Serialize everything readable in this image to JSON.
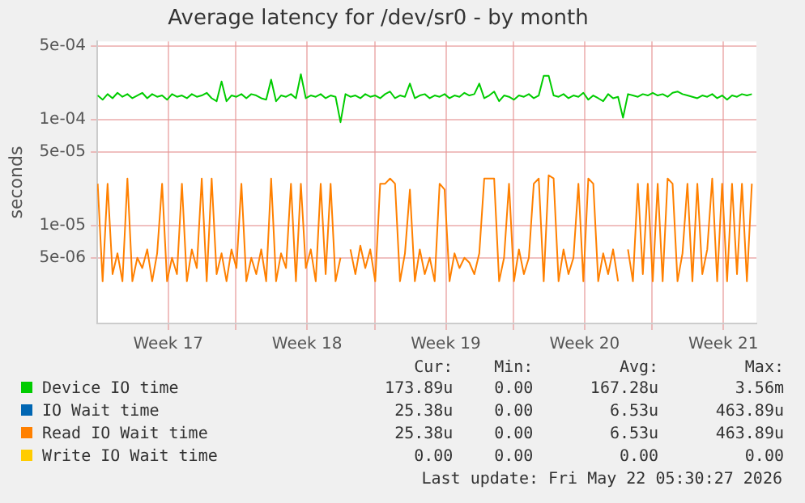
{
  "chart_data": {
    "type": "line",
    "title": "Average latency for /dev/sr0 - by month",
    "ylabel": "seconds",
    "x": [
      "2026-04-19T00:00",
      "2026-04-19T06:00",
      "2026-04-19T12:00",
      "2026-04-19T18:00",
      "2026-04-20T00:00",
      "2026-04-20T06:00",
      "2026-04-20T12:00",
      "2026-04-20T18:00",
      "2026-04-21T00:00",
      "2026-04-21T06:00",
      "2026-04-21T12:00",
      "2026-04-21T18:00",
      "2026-04-22T00:00",
      "2026-04-22T06:00",
      "2026-04-22T12:00",
      "2026-04-22T18:00",
      "2026-04-23T00:00",
      "2026-04-23T06:00",
      "2026-04-23T12:00",
      "2026-04-23T18:00",
      "2026-04-24T00:00",
      "2026-04-24T06:00",
      "2026-04-24T12:00",
      "2026-04-24T18:00",
      "2026-04-25T00:00",
      "2026-04-25T06:00",
      "2026-04-25T12:00",
      "2026-04-25T18:00",
      "2026-04-26T00:00",
      "2026-04-26T06:00",
      "2026-04-26T12:00",
      "2026-04-26T18:00",
      "2026-04-27T00:00",
      "2026-04-27T06:00",
      "2026-04-27T12:00",
      "2026-04-27T18:00",
      "2026-04-28T00:00",
      "2026-04-28T06:00",
      "2026-04-28T12:00",
      "2026-04-28T18:00",
      "2026-04-29T00:00",
      "2026-04-29T06:00",
      "2026-04-29T12:00",
      "2026-04-29T18:00",
      "2026-04-30T00:00",
      "2026-04-30T06:00",
      "2026-04-30T12:00",
      "2026-04-30T18:00",
      "2026-05-01T00:00",
      "2026-05-01T06:00",
      "2026-05-01T12:00",
      "2026-05-01T18:00",
      "2026-05-02T00:00",
      "2026-05-02T06:00",
      "2026-05-02T12:00",
      "2026-05-02T18:00",
      "2026-05-03T00:00",
      "2026-05-03T06:00",
      "2026-05-03T12:00",
      "2026-05-03T18:00",
      "2026-05-04T00:00",
      "2026-05-04T06:00",
      "2026-05-04T12:00",
      "2026-05-04T18:00",
      "2026-05-05T00:00",
      "2026-05-05T06:00",
      "2026-05-05T12:00",
      "2026-05-05T18:00",
      "2026-05-06T00:00",
      "2026-05-06T06:00",
      "2026-05-06T12:00",
      "2026-05-06T18:00",
      "2026-05-07T00:00",
      "2026-05-07T06:00",
      "2026-05-07T12:00",
      "2026-05-07T18:00",
      "2026-05-08T00:00",
      "2026-05-08T06:00",
      "2026-05-08T12:00",
      "2026-05-08T18:00",
      "2026-05-09T00:00",
      "2026-05-09T06:00",
      "2026-05-09T12:00",
      "2026-05-09T18:00",
      "2026-05-10T00:00",
      "2026-05-10T06:00",
      "2026-05-10T12:00",
      "2026-05-10T18:00",
      "2026-05-11T00:00",
      "2026-05-11T06:00",
      "2026-05-11T12:00",
      "2026-05-11T18:00",
      "2026-05-12T00:00",
      "2026-05-12T06:00",
      "2026-05-12T12:00",
      "2026-05-12T18:00",
      "2026-05-13T00:00",
      "2026-05-13T06:00",
      "2026-05-13T12:00",
      "2026-05-13T18:00",
      "2026-05-14T00:00",
      "2026-05-14T06:00",
      "2026-05-14T12:00",
      "2026-05-14T18:00",
      "2026-05-15T00:00",
      "2026-05-15T06:00",
      "2026-05-15T12:00",
      "2026-05-15T18:00",
      "2026-05-16T00:00",
      "2026-05-16T06:00",
      "2026-05-16T12:00",
      "2026-05-16T18:00",
      "2026-05-17T00:00",
      "2026-05-17T06:00",
      "2026-05-17T12:00",
      "2026-05-17T18:00",
      "2026-05-18T00:00",
      "2026-05-18T06:00",
      "2026-05-18T12:00",
      "2026-05-18T18:00",
      "2026-05-19T00:00",
      "2026-05-19T06:00",
      "2026-05-19T12:00",
      "2026-05-19T18:00",
      "2026-05-20T00:00",
      "2026-05-20T06:00",
      "2026-05-20T12:00",
      "2026-05-20T18:00",
      "2026-05-21T00:00",
      "2026-05-21T06:00",
      "2026-05-21T12:00",
      "2026-05-21T18:00",
      "2026-05-22T00:00"
    ],
    "series": [
      {
        "name": "Device IO time",
        "color": "#00cc00",
        "values": [
          0.00017,
          0.000155,
          0.000175,
          0.00016,
          0.00018,
          0.000165,
          0.000175,
          0.00016,
          0.00017,
          0.00018,
          0.00016,
          0.000175,
          0.000165,
          0.00017,
          0.000155,
          0.000175,
          0.000165,
          0.00017,
          0.00016,
          0.000175,
          0.000165,
          0.00017,
          0.00018,
          0.00016,
          0.00015,
          0.00023,
          0.00015,
          0.00017,
          0.000165,
          0.000175,
          0.00016,
          0.000175,
          0.00017,
          0.00016,
          0.000155,
          0.00024,
          0.00015,
          0.00017,
          0.000165,
          0.000175,
          0.00016,
          0.00027,
          0.00016,
          0.00017,
          0.000165,
          0.000175,
          0.00016,
          0.00017,
          0.000165,
          9.5e-05,
          0.000175,
          0.000165,
          0.00017,
          0.00016,
          0.000175,
          0.000165,
          0.00017,
          0.00016,
          0.000175,
          0.000185,
          0.00016,
          0.00017,
          0.000165,
          0.00022,
          0.00016,
          0.00017,
          0.000175,
          0.00016,
          0.00017,
          0.000165,
          0.000175,
          0.00016,
          0.00017,
          0.000165,
          0.00018,
          0.00017,
          0.000175,
          0.00022,
          0.00016,
          0.00017,
          0.000185,
          0.00015,
          0.00017,
          0.000165,
          0.000155,
          0.00017,
          0.000165,
          0.000175,
          0.00016,
          0.00017,
          0.00026,
          0.00026,
          0.00017,
          0.000165,
          0.000175,
          0.00016,
          0.00017,
          0.000165,
          0.00018,
          0.000155,
          0.00017,
          0.00016,
          0.00015,
          0.000175,
          0.00016,
          0.000165,
          0.000105,
          0.000175,
          0.00017,
          0.000165,
          0.000175,
          0.00017,
          0.00018,
          0.00017,
          0.000175,
          0.000165,
          0.00018,
          0.000185,
          0.000175,
          0.00017,
          0.000165,
          0.00016,
          0.00017,
          0.000165,
          0.000175,
          0.00016,
          0.00017,
          0.000155,
          0.00017,
          0.000165,
          0.000175,
          0.00017,
          0.000175
        ]
      },
      {
        "name": "IO Wait time",
        "color": "#0066b3",
        "values": [
          null,
          null,
          null,
          null,
          null,
          null,
          null,
          null,
          null,
          null,
          null,
          null,
          null,
          null,
          null,
          null,
          null,
          null,
          null,
          null,
          null,
          null,
          null,
          null,
          null,
          null,
          null,
          null,
          null,
          null,
          null,
          null,
          null,
          null,
          null,
          null,
          null,
          null,
          null,
          null,
          null,
          null,
          null,
          null,
          null,
          null,
          null,
          null,
          null,
          null,
          null,
          null,
          null,
          null,
          null,
          null,
          null,
          null,
          null,
          null,
          null,
          null,
          null,
          null,
          null,
          null,
          null,
          null,
          null,
          null,
          null,
          null,
          null,
          null,
          null,
          null,
          null,
          null,
          null,
          null,
          null,
          null,
          null,
          null,
          null,
          null,
          null,
          null,
          null,
          null,
          null,
          null,
          null,
          null,
          null,
          null,
          null,
          null,
          null,
          null,
          null,
          null,
          null,
          null,
          null,
          null,
          null,
          null,
          null,
          null,
          null,
          null,
          null,
          null,
          null,
          null,
          null,
          null,
          null,
          null,
          null,
          null,
          null,
          null,
          null,
          null,
          null,
          null,
          null,
          null,
          null,
          null,
          null
        ]
      },
      {
        "name": "Read IO Wait time",
        "color": "#ff8000",
        "values": [
          2.5e-05,
          3e-06,
          2.5e-05,
          3.5e-06,
          5.5e-06,
          3e-06,
          2.8e-05,
          3e-06,
          5e-06,
          4e-06,
          6e-06,
          3e-06,
          5.5e-06,
          2.5e-05,
          3e-06,
          5e-06,
          3.5e-06,
          2.5e-05,
          3e-06,
          6e-06,
          4e-06,
          2.8e-05,
          3e-06,
          2.8e-05,
          3.5e-06,
          5.5e-06,
          3e-06,
          6e-06,
          4e-06,
          2.5e-05,
          3e-06,
          5e-06,
          3.5e-06,
          6e-06,
          3e-06,
          2.8e-05,
          3e-06,
          5.5e-06,
          4e-06,
          2.5e-05,
          3e-06,
          2.5e-05,
          4e-06,
          6e-06,
          3e-06,
          2.5e-05,
          3.5e-06,
          2.5e-05,
          3e-06,
          5e-06,
          null,
          6e-06,
          3.5e-06,
          6.5e-06,
          4e-06,
          6e-06,
          3e-06,
          2.5e-05,
          2.5e-05,
          2.8e-05,
          2.5e-05,
          3e-06,
          5.5e-06,
          2.2e-05,
          3e-06,
          6e-06,
          3.5e-06,
          5e-06,
          3e-06,
          2.5e-05,
          2.2e-05,
          3e-06,
          5.5e-06,
          4e-06,
          5e-06,
          4.5e-06,
          3.5e-06,
          5.5e-06,
          2.8e-05,
          2.8e-05,
          2.8e-05,
          3e-06,
          5e-06,
          2.5e-05,
          3e-06,
          6e-06,
          3.5e-06,
          5e-06,
          2.5e-05,
          2.8e-05,
          3e-06,
          3e-05,
          2.8e-05,
          3e-06,
          6e-06,
          3.5e-06,
          5e-06,
          2.5e-05,
          3e-06,
          2.8e-05,
          2.5e-05,
          3e-06,
          5.5e-06,
          3.5e-06,
          6e-06,
          3e-06,
          null,
          6e-06,
          3e-06,
          2.5e-05,
          3.5e-06,
          2.5e-05,
          3e-06,
          2.5e-05,
          3e-06,
          2.8e-05,
          2.5e-05,
          3e-06,
          5.5e-06,
          2.5e-05,
          3e-06,
          2.5e-05,
          3.5e-06,
          6e-06,
          2.8e-05,
          3e-06,
          2.5e-05,
          3e-06,
          2.5e-05,
          3.5e-06,
          2.5e-05,
          3e-06,
          2.5e-05
        ]
      },
      {
        "name": "Write IO Wait time",
        "color": "#ffcc00",
        "values": [
          null,
          null,
          null,
          null,
          null,
          null,
          null,
          null,
          null,
          null,
          null,
          null,
          null,
          null,
          null,
          null,
          null,
          null,
          null,
          null,
          null,
          null,
          null,
          null,
          null,
          null,
          null,
          null,
          null,
          null,
          null,
          null,
          null,
          null,
          null,
          null,
          null,
          null,
          null,
          null,
          null,
          null,
          null,
          null,
          null,
          null,
          null,
          null,
          null,
          null,
          null,
          null,
          null,
          null,
          null,
          null,
          null,
          null,
          null,
          null,
          null,
          null,
          null,
          null,
          null,
          null,
          null,
          null,
          null,
          null,
          null,
          null,
          null,
          null,
          null,
          null,
          null,
          null,
          null,
          null,
          null,
          null,
          null,
          null,
          null,
          null,
          null,
          null,
          null,
          null,
          null,
          null,
          null,
          null,
          null,
          null,
          null,
          null,
          null,
          null,
          null,
          null,
          null,
          null,
          null,
          null,
          null,
          null,
          null,
          null,
          null,
          null,
          null,
          null,
          null,
          null,
          null,
          null,
          null,
          null,
          null,
          null,
          null,
          null,
          null,
          null,
          null,
          null,
          null,
          null,
          null,
          null,
          null
        ]
      }
    ],
    "log": "y",
    "ylim": [
      1.2e-06,
      0.00055
    ],
    "yticks": [
      {
        "value": 5e-06,
        "label": "5e-06"
      },
      {
        "value": 1e-05,
        "label": "1e-05"
      },
      {
        "value": 5e-05,
        "label": "5e-05"
      },
      {
        "value": 0.0001,
        "label": "1e-04"
      },
      {
        "value": 0.0005,
        "label": "5e-04"
      }
    ],
    "xlim": [
      "2026-04-18T23:30",
      "2026-05-22T05:30"
    ],
    "xticks": [
      {
        "value": "2026-04-22T13:30",
        "label": "Week 17"
      },
      {
        "value": "2026-04-25T23:30",
        "label": null
      },
      {
        "value": "2026-04-29T13:30",
        "label": "Week 18"
      },
      {
        "value": "2026-05-02T23:30",
        "label": null
      },
      {
        "value": "2026-05-06T13:30",
        "label": "Week 19"
      },
      {
        "value": "2026-05-09T23:30",
        "label": null
      },
      {
        "value": "2026-05-13T13:30",
        "label": "Week 20"
      },
      {
        "value": "2026-05-16T23:30",
        "label": null
      },
      {
        "value": "2026-05-20T13:30",
        "label": "Week 21"
      }
    ],
    "grid": true,
    "legend": "bottom",
    "marker": "none",
    "line_style": "solid",
    "annotations": [
      "Cur:",
      "Min:",
      "Avg:",
      "Max:",
      "173.89u",
      "0.00",
      "167.28u",
      "3.56m",
      "25.38u",
      "0.00",
      "6.53u",
      "463.89u",
      "25.38u",
      "0.00",
      "6.53u",
      "463.89u",
      "0.00",
      "0.00",
      "0.00",
      "0.00",
      "Last update: Fri May 22 05:30:27 2026"
    ]
  }
}
